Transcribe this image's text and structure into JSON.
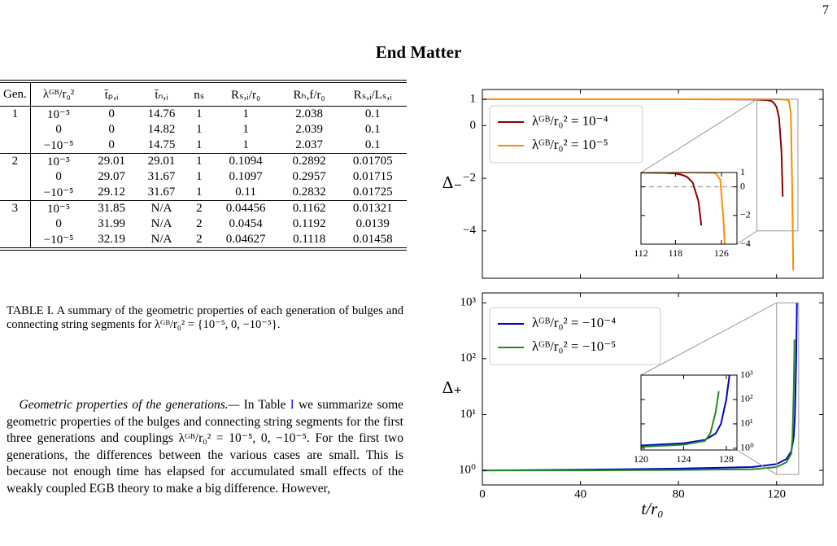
{
  "page_number": "7",
  "section_title": "End Matter",
  "table": {
    "columns": [
      "Gen.",
      "λᴳᴮ/r₀²",
      "t̄ₚ,ᵢ",
      "t̄ₙ,ᵢ",
      "nₛ",
      "Rₛ,ᵢ/r₀",
      "Rₕ,f/r₀",
      "Rₛ,ᵢ/Lₛ,ᵢ"
    ],
    "groups": [
      {
        "gen": "1",
        "rows": [
          [
            "10⁻⁵",
            "0",
            "14.76",
            "1",
            "1",
            "2.038",
            "0.1"
          ],
          [
            "0",
            "0",
            "14.82",
            "1",
            "1",
            "2.039",
            "0.1"
          ],
          [
            "−10⁻⁵",
            "0",
            "14.75",
            "1",
            "1",
            "2.037",
            "0.1"
          ]
        ]
      },
      {
        "gen": "2",
        "rows": [
          [
            "10⁻⁵",
            "29.01",
            "29.01",
            "1",
            "0.1094",
            "0.2892",
            "0.01705"
          ],
          [
            "0",
            "29.07",
            "31.67",
            "1",
            "0.1097",
            "0.2957",
            "0.01715"
          ],
          [
            "−10⁻⁵",
            "29.12",
            "31.67",
            "1",
            "0.11",
            "0.2832",
            "0.01725"
          ]
        ]
      },
      {
        "gen": "3",
        "rows": [
          [
            "10⁻⁵",
            "31.85",
            "N/A",
            "2",
            "0.04456",
            "0.1162",
            "0.01321"
          ],
          [
            "0",
            "31.99",
            "N/A",
            "2",
            "0.0454",
            "0.1192",
            "0.0139"
          ],
          [
            "−10⁻⁵",
            "32.19",
            "N/A",
            "2",
            "0.04627",
            "0.1118",
            "0.01458"
          ]
        ]
      }
    ],
    "caption": "TABLE I. A summary of the geometric properties of each generation of bulges and connecting string segments for λᴳᴮ/r₀² = {10⁻⁵, 0, −10⁻⁵}."
  },
  "paragraph": {
    "heading": "Geometric properties of the generations.—",
    "text_before": "In Table",
    "ref": "I",
    "text_after": "we summarize some geometric properties of the bulges and connecting string segments for the first three generations and couplings λᴳᴮ/r₀² = 10⁻⁵, 0, −10⁻⁵. For the first two generations, the differences between the various cases are small. This is because not enough time has elapsed for accumulated small effects of the weakly coupled EGB theory to make a big difference. However,"
  },
  "chart_data": [
    {
      "type": "line",
      "ylabel": "Δ₋",
      "xlim": [
        0,
        139
      ],
      "ylim": [
        -5.8,
        1.37
      ],
      "xticks": [
        0,
        40,
        80,
        120
      ],
      "x_tick_labels": false,
      "yticks": [
        1,
        0,
        {
          "value": -2,
          "label": "−2"
        },
        {
          "value": -4,
          "label": "−4"
        }
      ],
      "legend": "upper left",
      "series": [
        {
          "name": "λᴳᴮ/r₀² = 10⁻⁴",
          "color": "#8b0000",
          "x": [
            0,
            40,
            80,
            110,
            116,
            118,
            119,
            120,
            121,
            122,
            122.5
          ],
          "values": [
            1,
            1,
            1,
            0.99,
            0.97,
            0.93,
            0.85,
            0.7,
            0.3,
            -1,
            -2.7
          ]
        },
        {
          "name": "λᴳᴮ/r₀² = 10⁻⁵",
          "color": "#ff8c00",
          "x": [
            0,
            40,
            80,
            120,
            124,
            125,
            125.8,
            126.3,
            126.8
          ],
          "values": [
            1,
            1,
            1,
            1,
            0.98,
            0.95,
            0.5,
            -2,
            -5.5
          ]
        }
      ],
      "inset": {
        "xlim": [
          112,
          128.7
        ],
        "ylim": [
          -4,
          1
        ],
        "xticks": [
          112,
          118,
          126
        ],
        "yticks": [
          1,
          0,
          {
            "value": -2,
            "label": "−2"
          },
          {
            "value": -4,
            "label": "−4"
          }
        ],
        "hline": 0
      }
    },
    {
      "type": "line",
      "ylabel": "Δ₊",
      "xlabel": "t/r₀",
      "log_y": true,
      "xlim": [
        0,
        139
      ],
      "ylim": [
        0.55,
        1500
      ],
      "xticks": [
        0,
        40,
        80,
        120
      ],
      "x_tick_labels": true,
      "yticks": [
        {
          "value": 1,
          "label": "10⁰"
        },
        {
          "value": 10,
          "label": "10¹"
        },
        {
          "value": 100,
          "label": "10²"
        },
        {
          "value": 1000,
          "label": "10³"
        }
      ],
      "legend": "upper left",
      "series": [
        {
          "name": "λᴳᴮ/r₀² = −10⁻⁴",
          "color": "#0000cd",
          "x": [
            0,
            40,
            80,
            110,
            120,
            124,
            126,
            127,
            127.5,
            128,
            128.3
          ],
          "values": [
            1,
            1.03,
            1.08,
            1.15,
            1.3,
            1.6,
            2.2,
            4,
            10,
            100,
            1000
          ]
        },
        {
          "name": "λᴳᴮ/r₀² = −10⁻⁵",
          "color": "#228b22",
          "x": [
            0,
            40,
            80,
            110,
            120,
            124,
            126,
            126.5,
            127,
            127.3
          ],
          "values": [
            1,
            1,
            1.02,
            1.05,
            1.15,
            1.4,
            2,
            4,
            30,
            220
          ]
        }
      ],
      "inset": {
        "xlim": [
          120,
          129
        ],
        "ylim": [
          0.85,
          1000
        ],
        "xticks": [
          120,
          124,
          128
        ],
        "yticks": [
          {
            "value": 1,
            "label": "10⁰"
          },
          {
            "value": 10,
            "label": "10¹"
          },
          {
            "value": 100,
            "label": "10²"
          },
          {
            "value": 1000,
            "label": "10³"
          }
        ]
      }
    }
  ]
}
